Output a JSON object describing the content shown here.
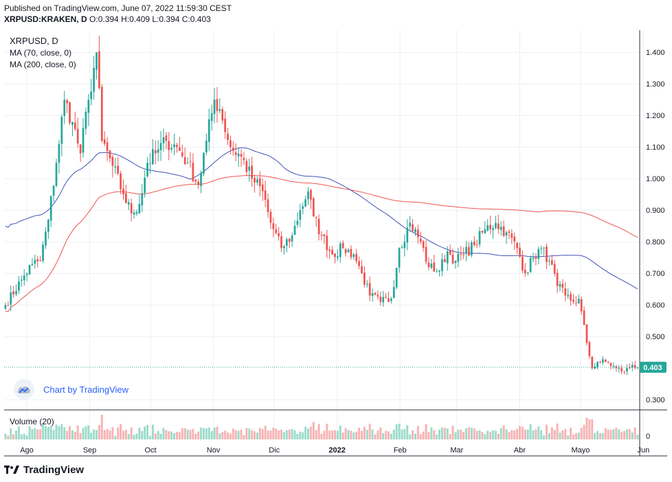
{
  "header": {
    "published": "Published on TradingView.com, June 07, 2022 11:59:30 CEST",
    "symbol": "XRPUSD:KRAKEN, D",
    "ohlc": "O:0.394 H:0.409 L:0.394 C:0.403"
  },
  "legend": {
    "title": "XRPUSD, D",
    "ma70": "MA (70, close, 0)",
    "ma200": "MA (200, close, 0)",
    "volume": "Volume (20)"
  },
  "watermark": "Chart by TradingView",
  "footer": "TradingView",
  "colors": {
    "up": "#26a69a",
    "down": "#ef5350",
    "up_volume": "#9bdcc9",
    "down_volume": "#f7b3b3",
    "ma70": "#3f51b5",
    "ma200": "#ef5350",
    "price_line": "#26a69a",
    "grid": "#eceff3"
  },
  "chart_data": {
    "type": "candlestick",
    "symbol": "XRPUSD",
    "exchange": "KRAKEN",
    "interval": "D",
    "y_ticks": [
      "1.400",
      "1.300",
      "1.200",
      "1.100",
      "1.000",
      "0.900",
      "0.800",
      "0.700",
      "0.600",
      "0.500",
      "0.300"
    ],
    "ylim": [
      0.27,
      1.47
    ],
    "x_labels": [
      "Ago",
      "Sep",
      "Oct",
      "Nov",
      "Dic",
      "2022",
      "Feb",
      "Mar",
      "Abr",
      "Mayo",
      "Jun"
    ],
    "last_price": "0.403",
    "volume_tick": "0",
    "anchors": [
      {
        "day": 0,
        "close": 0.6
      },
      {
        "day": 6,
        "close": 0.68
      },
      {
        "day": 10,
        "close": 0.73
      },
      {
        "day": 13,
        "close": 0.74
      },
      {
        "day": 16,
        "close": 0.87
      },
      {
        "day": 19,
        "close": 1.05
      },
      {
        "day": 22,
        "close": 1.25
      },
      {
        "day": 25,
        "close": 1.18
      },
      {
        "day": 28,
        "close": 1.08
      },
      {
        "day": 31,
        "close": 1.25
      },
      {
        "day": 34,
        "close": 1.4
      },
      {
        "day": 36,
        "close": 1.12
      },
      {
        "day": 40,
        "close": 1.04
      },
      {
        "day": 44,
        "close": 0.95
      },
      {
        "day": 47,
        "close": 0.89
      },
      {
        "day": 50,
        "close": 0.92
      },
      {
        "day": 53,
        "close": 1.05
      },
      {
        "day": 56,
        "close": 1.08
      },
      {
        "day": 60,
        "close": 1.12
      },
      {
        "day": 64,
        "close": 1.1
      },
      {
        "day": 68,
        "close": 1.05
      },
      {
        "day": 72,
        "close": 0.98
      },
      {
        "day": 75,
        "close": 1.12
      },
      {
        "day": 78,
        "close": 1.25
      },
      {
        "day": 80,
        "close": 1.22
      },
      {
        "day": 84,
        "close": 1.1
      },
      {
        "day": 88,
        "close": 1.07
      },
      {
        "day": 92,
        "close": 1.0
      },
      {
        "day": 96,
        "close": 0.96
      },
      {
        "day": 99,
        "close": 0.86
      },
      {
        "day": 103,
        "close": 0.78
      },
      {
        "day": 107,
        "close": 0.82
      },
      {
        "day": 110,
        "close": 0.9
      },
      {
        "day": 113,
        "close": 0.96
      },
      {
        "day": 115,
        "close": 0.88
      },
      {
        "day": 118,
        "close": 0.82
      },
      {
        "day": 122,
        "close": 0.76
      },
      {
        "day": 126,
        "close": 0.78
      },
      {
        "day": 130,
        "close": 0.76
      },
      {
        "day": 133,
        "close": 0.7
      },
      {
        "day": 136,
        "close": 0.63
      },
      {
        "day": 140,
        "close": 0.61
      },
      {
        "day": 144,
        "close": 0.62
      },
      {
        "day": 147,
        "close": 0.78
      },
      {
        "day": 151,
        "close": 0.86
      },
      {
        "day": 155,
        "close": 0.8
      },
      {
        "day": 158,
        "close": 0.72
      },
      {
        "day": 162,
        "close": 0.71
      },
      {
        "day": 165,
        "close": 0.77
      },
      {
        "day": 168,
        "close": 0.74
      },
      {
        "day": 171,
        "close": 0.76
      },
      {
        "day": 175,
        "close": 0.79
      },
      {
        "day": 179,
        "close": 0.84
      },
      {
        "day": 183,
        "close": 0.86
      },
      {
        "day": 187,
        "close": 0.83
      },
      {
        "day": 191,
        "close": 0.78
      },
      {
        "day": 194,
        "close": 0.7
      },
      {
        "day": 197,
        "close": 0.75
      },
      {
        "day": 200,
        "close": 0.78
      },
      {
        "day": 203,
        "close": 0.74
      },
      {
        "day": 206,
        "close": 0.66
      },
      {
        "day": 209,
        "close": 0.63
      },
      {
        "day": 212,
        "close": 0.61
      },
      {
        "day": 214,
        "close": 0.62
      },
      {
        "day": 217,
        "close": 0.48
      },
      {
        "day": 219,
        "close": 0.4
      },
      {
        "day": 221,
        "close": 0.42
      },
      {
        "day": 224,
        "close": 0.42
      },
      {
        "day": 228,
        "close": 0.4
      },
      {
        "day": 231,
        "close": 0.39
      },
      {
        "day": 234,
        "close": 0.41
      },
      {
        "day": 236,
        "close": 0.403
      }
    ]
  }
}
